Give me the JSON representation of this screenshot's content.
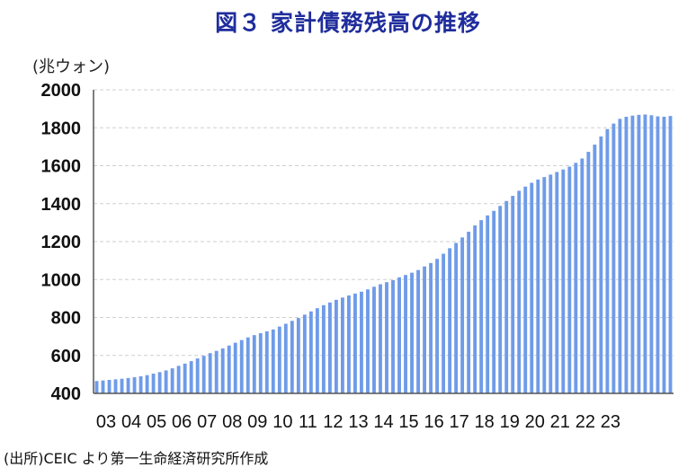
{
  "chart_data": {
    "type": "bar",
    "title": "図３ 家計債務残高の推移",
    "unit_label": "(兆ウォン)",
    "source_note": "(出所)CEIC より第一生命経済研究所作成",
    "ylim": [
      400,
      2000
    ],
    "yticks": [
      "400",
      "600",
      "800",
      "1000",
      "1200",
      "1400",
      "1600",
      "1800",
      "2000"
    ],
    "ytick_values": [
      400,
      600,
      800,
      1000,
      1200,
      1400,
      1600,
      1800,
      2000
    ],
    "xtick_labels": [
      "03",
      "04",
      "05",
      "06",
      "07",
      "08",
      "09",
      "10",
      "11",
      "12",
      "13",
      "14",
      "15",
      "16",
      "17",
      "18",
      "19",
      "20",
      "21",
      "22",
      "23"
    ],
    "grid": true,
    "bar_color": "#6f9be8",
    "frequency": "quarterly",
    "start_period": "2003Q1",
    "values": [
      465,
      468,
      471,
      474,
      477,
      481,
      485,
      490,
      496,
      504,
      512,
      521,
      532,
      545,
      557,
      570,
      584,
      598,
      612,
      624,
      637,
      652,
      667,
      681,
      695,
      707,
      717,
      727,
      737,
      752,
      767,
      782,
      797,
      815,
      832,
      849,
      865,
      879,
      893,
      905,
      916,
      926,
      936,
      948,
      962,
      975,
      986,
      997,
      1012,
      1024,
      1036,
      1050,
      1069,
      1087,
      1109,
      1136,
      1165,
      1193,
      1222,
      1252,
      1285,
      1313,
      1338,
      1362,
      1388,
      1414,
      1441,
      1468,
      1490,
      1510,
      1527,
      1540,
      1553,
      1567,
      1580,
      1595,
      1615,
      1638,
      1673,
      1711,
      1754,
      1793,
      1822,
      1847,
      1858,
      1864,
      1868,
      1870,
      1866,
      1860,
      1858,
      1862
    ]
  }
}
